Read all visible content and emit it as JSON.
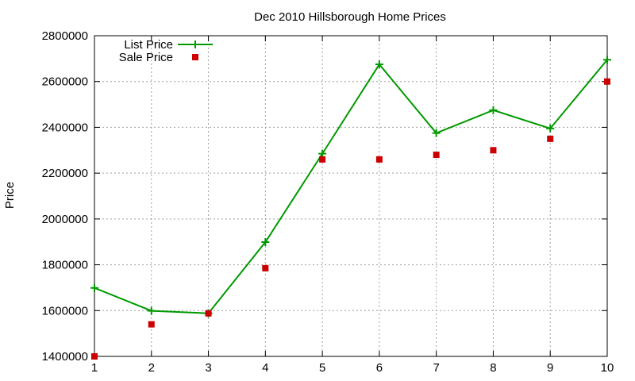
{
  "chart_data": {
    "type": "line",
    "title": "Dec 2010 Hillsborough Home Prices",
    "xlabel": "",
    "ylabel": "Price",
    "x": [
      1,
      2,
      3,
      4,
      5,
      6,
      7,
      8,
      9,
      10
    ],
    "xlim": [
      1,
      10
    ],
    "ylim": [
      1400000,
      2800000
    ],
    "x_ticks": [
      "1",
      "2",
      "3",
      "4",
      "5",
      "6",
      "7",
      "8",
      "9",
      "10"
    ],
    "y_ticks": [
      "1400000",
      "1600000",
      "1800000",
      "2000000",
      "2200000",
      "2400000",
      "2600000",
      "2800000"
    ],
    "grid": true,
    "legend_position": "top-left",
    "series": [
      {
        "name": "List Price",
        "style": "line-with-plus-markers",
        "color": "#009900",
        "values": [
          1699000,
          1599000,
          1588000,
          1899000,
          2285000,
          2675000,
          2375000,
          2475000,
          2395000,
          2695000
        ]
      },
      {
        "name": "Sale Price",
        "style": "square-markers",
        "color": "#cc0000",
        "values": [
          1400000,
          1540000,
          1588000,
          1785000,
          2260000,
          2260000,
          2280000,
          2300000,
          2350000,
          2600000
        ]
      }
    ]
  }
}
